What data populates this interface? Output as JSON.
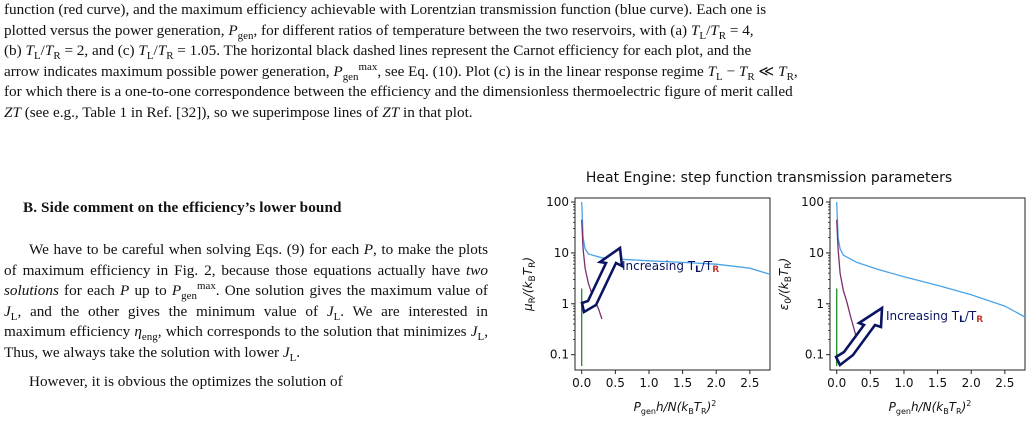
{
  "caption": {
    "line1": "function (red curve), and the maximum efficiency achievable with Lorentzian transmission function (blue curve). Each one is",
    "line2": "plotted versus the power generation, P_gen, for different ratios of temperature between the two reservoirs, with (a) T_L/T_R = 4,",
    "line3": "(b) T_L/T_R = 2, and (c) T_L/T_R = 1.05. The horizontal black dashed lines represent the Carnot efficiency for each plot, and the",
    "line4": "arrow indicates maximum possible power generation, P_gen^max, see Eq. (10). Plot (c) is in the linear response regime T_L − T_R ≪ T_R,",
    "line5": "for which there is a one-to-one correspondence between the efficiency and the dimensionless thermoelectric figure of merit called",
    "line6": "ZT (see e.g., Table 1 in Ref. [32]), so we superimpose lines of ZT in that plot."
  },
  "section": {
    "heading": "B.   Side comment on the efficiency’s lower bound"
  },
  "body": {
    "p1": "We have to be careful when solving Eqs. (9) for each P, to make the plots of maximum efficiency in Fig. 2, because those equations actually have two solutions for each P up to P_gen^max. One solution gives the maximum value of J_L, and the other gives the minimum value of J_L. We are interested in maximum efficiency η_eng, which corresponds to the solution that minimizes J_L, Thus, we always take the solution with lower J_L.",
    "p2": "However, it is obvious the optimizes the solution of"
  },
  "figure": {
    "title": "Heat Engine: step function transmission parameters",
    "left_ylabel": "μ_R/(k_B T_R)",
    "right_ylabel": "ε_0/(k_B T_R)",
    "xlabel": "P_gen h/N(k_B T_R)^2",
    "annotation": "Increasing T_L/T_R",
    "colors": {
      "blue": "#4aa3e8",
      "purple": "#7b2d6e",
      "green": "#1e8a2a",
      "navy": "#0b1463"
    }
  },
  "chart_data": [
    {
      "type": "line",
      "title": "Heat Engine: step function transmission parameters",
      "xlabel": "P_gen h/N(k_B T_R)^2",
      "ylabel": "μ_R/(k_B T_R)",
      "x_ticks": [
        "0.0",
        "0.5",
        "1.0",
        "1.5",
        "2.0",
        "2.5"
      ],
      "y_ticks": [
        "0.1",
        "1",
        "10",
        "100"
      ],
      "y_scale": "log",
      "xlim": [
        -0.1,
        2.8
      ],
      "ylim": [
        0.05,
        120
      ],
      "series": [
        {
          "color": "#4aa3e8",
          "x": [
            0.0,
            0.02,
            0.05,
            0.1,
            0.3,
            0.6,
            1.0,
            1.5,
            2.0,
            2.5,
            2.8
          ],
          "y": [
            100,
            20,
            12,
            9.5,
            8,
            7.5,
            7,
            6.5,
            6,
            5,
            3.8
          ]
        },
        {
          "color": "#7b2d6e",
          "x": [
            0.0,
            0.02,
            0.05,
            0.1,
            0.15,
            0.2,
            0.25,
            0.3
          ],
          "y": [
            45,
            12,
            5,
            2.5,
            1.6,
            1.1,
            0.8,
            0.5
          ]
        },
        {
          "color": "#1e8a2a",
          "x": [
            0.0,
            0.0,
            0.0,
            0.0
          ],
          "y": [
            2.0,
            1.2,
            0.3,
            0.06
          ]
        }
      ],
      "annotations": [
        "Increasing T_L/T_R"
      ]
    },
    {
      "type": "line",
      "xlabel": "P_gen h/N(k_B T_R)^2",
      "ylabel": "ε_0/(k_B T_R)",
      "x_ticks": [
        "0.0",
        "0.5",
        "1.0",
        "1.5",
        "2.0",
        "2.5"
      ],
      "y_ticks": [
        "0.1",
        "1",
        "10",
        "100"
      ],
      "y_scale": "log",
      "xlim": [
        -0.1,
        2.8
      ],
      "ylim": [
        0.05,
        120
      ],
      "series": [
        {
          "color": "#4aa3e8",
          "x": [
            0.0,
            0.02,
            0.05,
            0.1,
            0.3,
            0.6,
            1.0,
            1.5,
            2.0,
            2.5,
            2.8
          ],
          "y": [
            100,
            20,
            12,
            9.0,
            6.5,
            4.8,
            3.4,
            2.3,
            1.5,
            0.9,
            0.55
          ]
        },
        {
          "color": "#7b2d6e",
          "x": [
            0.0,
            0.02,
            0.05,
            0.1,
            0.15,
            0.2,
            0.25,
            0.3
          ],
          "y": [
            45,
            12,
            4,
            1.8,
            1.1,
            0.6,
            0.35,
            0.2
          ]
        },
        {
          "color": "#1e8a2a",
          "x": [
            0.0,
            0.0,
            0.0,
            0.0
          ],
          "y": [
            2.0,
            1.2,
            0.3,
            0.06
          ]
        }
      ],
      "annotations": [
        "Increasing T_L/T_R"
      ]
    }
  ]
}
